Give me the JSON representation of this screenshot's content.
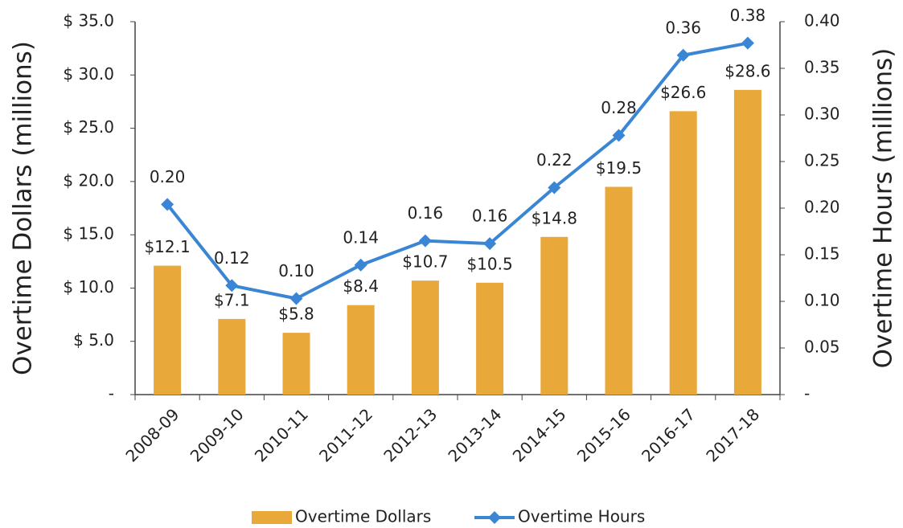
{
  "chart_data": {
    "type": "bar-line",
    "categories": [
      "2008-09",
      "2009-10",
      "2010-11",
      "2011-12",
      "2012-13",
      "2013-14",
      "2014-15",
      "2015-16",
      "2016-17",
      "2017-18"
    ],
    "series": [
      {
        "name": "Overtime Dollars",
        "type": "bar",
        "color": "#e9a83a",
        "values": [
          12.1,
          7.1,
          5.8,
          8.4,
          10.7,
          10.5,
          14.8,
          19.5,
          26.6,
          28.6
        ],
        "value_labels": [
          "$12.1",
          "$7.1",
          "$5.8",
          "$8.4",
          "$10.7",
          "$10.5",
          "$14.8",
          "$19.5",
          "$26.6",
          "$28.6"
        ]
      },
      {
        "name": "Overtime Hours",
        "type": "line",
        "axis": "y2",
        "color": "#3a86d4",
        "values": [
          0.204,
          0.117,
          0.103,
          0.139,
          0.165,
          0.162,
          0.222,
          0.278,
          0.364,
          0.377
        ],
        "value_labels": [
          "0.20",
          "0.12",
          "0.10",
          "0.14",
          "0.16",
          "0.16",
          "0.22",
          "0.28",
          "0.36",
          "0.38"
        ]
      }
    ],
    "y_label": "Overtime Dollars (millions)",
    "y2_label": "Overtime Hours (millions)",
    "ylim": [
      0,
      35
    ],
    "yticks": [
      {
        "value": 0,
        "label": "-"
      },
      {
        "value": 5,
        "label": "$ 5.0"
      },
      {
        "value": 10,
        "label": "$ 10.0"
      },
      {
        "value": 15,
        "label": "$ 15.0"
      },
      {
        "value": 20,
        "label": "$ 20.0"
      },
      {
        "value": 25,
        "label": "$ 25.0"
      },
      {
        "value": 30,
        "label": "$ 30.0"
      },
      {
        "value": 35,
        "label": "$ 35.0"
      }
    ],
    "y2lim": [
      0,
      0.4
    ],
    "y2ticks": [
      {
        "value": 0,
        "label": "-"
      },
      {
        "value": 0.05,
        "label": "0.05"
      },
      {
        "value": 0.1,
        "label": "0.10"
      },
      {
        "value": 0.15,
        "label": "0.15"
      },
      {
        "value": 0.2,
        "label": "0.20"
      },
      {
        "value": 0.25,
        "label": "0.25"
      },
      {
        "value": 0.3,
        "label": "0.30"
      },
      {
        "value": 0.35,
        "label": "0.35"
      },
      {
        "value": 0.4,
        "label": "0.40"
      }
    ],
    "legend": "bottom"
  }
}
